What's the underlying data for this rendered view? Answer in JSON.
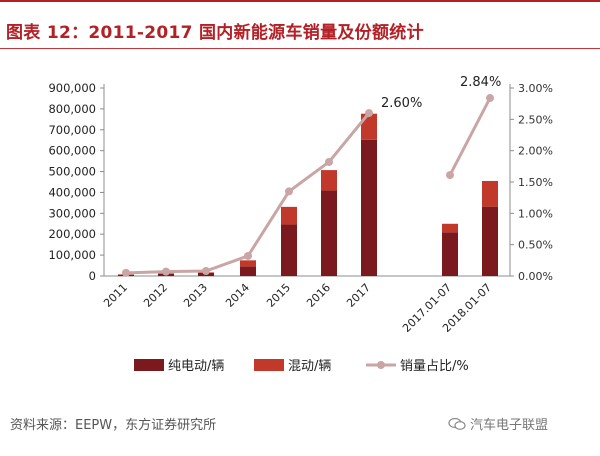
{
  "header": {
    "title": "图表 12：2011-2017 国内新能源车销量及份额统计"
  },
  "chart_data": {
    "type": "bar",
    "categories": [
      "2011",
      "2012",
      "2013",
      "2014",
      "2015",
      "2016",
      "2017",
      "2017.01-07",
      "2018.01-07"
    ],
    "series": [
      {
        "name": "纯电动/辆",
        "kind": "bar-stacked",
        "color": "#7b1a1e",
        "values": [
          5600,
          11400,
          14600,
          45000,
          247000,
          409000,
          652000,
          209000,
          332000
        ]
      },
      {
        "name": "混动/辆",
        "kind": "bar-stacked",
        "color": "#c0392b",
        "values": [
          2600,
          1500,
          3000,
          30000,
          84000,
          98000,
          125000,
          41000,
          123000
        ]
      },
      {
        "name": "销量占比/%",
        "kind": "line",
        "axis": "right",
        "color": "#c9a5a5",
        "values": [
          0.0005,
          0.0007,
          0.0008,
          0.0032,
          0.0135,
          0.0182,
          0.026,
          0.0161,
          0.0284
        ]
      }
    ],
    "line_segments": [
      [
        0,
        6
      ],
      [
        7,
        8
      ]
    ],
    "yleft": {
      "min": 0,
      "max": 900000,
      "ticks": [
        "0",
        "100,000",
        "200,000",
        "300,000",
        "400,000",
        "500,000",
        "600,000",
        "700,000",
        "800,000",
        "900,000"
      ]
    },
    "yright": {
      "min": 0,
      "max": 0.03,
      "ticks": [
        "0.00%",
        "0.50%",
        "1.00%",
        "1.50%",
        "2.00%",
        "2.50%",
        "3.00%"
      ]
    },
    "annotations": [
      {
        "text": "2.60%",
        "index": 6
      },
      {
        "text": "2.84%",
        "index": 8
      }
    ],
    "legend": [
      {
        "label": "纯电动/辆",
        "swatch": "bar",
        "color": "#7b1a1e"
      },
      {
        "label": "混动/辆",
        "swatch": "bar",
        "color": "#c0392b"
      },
      {
        "label": "销量占比/%",
        "swatch": "line",
        "color": "#c9a5a5"
      }
    ],
    "grid": false
  },
  "footer": {
    "source": "资料来源：EEPW，东方证券研究所",
    "watermark": "汽车电子联盟",
    "watermark_icon": "wechat-icon"
  }
}
